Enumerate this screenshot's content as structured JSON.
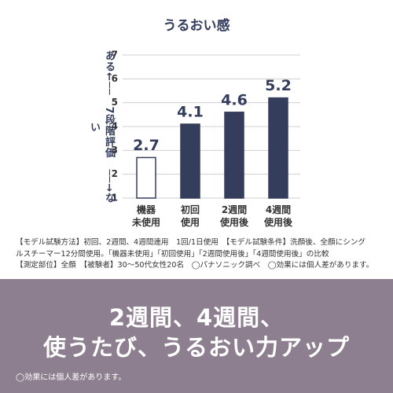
{
  "chart_data": {
    "type": "bar",
    "title": "うるおい感",
    "ylabel": "ある←──　7段階評価　──→ない",
    "categories": [
      "機器\n未使用",
      "初回\n使用",
      "2週間\n使用後",
      "4週間\n使用後"
    ],
    "values": [
      2.7,
      4.1,
      4.6,
      5.2
    ],
    "colors": [
      "#ffffff",
      "#343d5c",
      "#343d5c",
      "#343d5c"
    ],
    "edgecolor": "#343d5c",
    "ylim": [
      1,
      7
    ],
    "yticks": [
      1,
      2,
      3,
      4,
      5,
      6,
      7
    ],
    "grid": true
  },
  "notes": [
    "【モデル試験方法】初回、2週間、4週間連用　1回/1日使用　【モデル試験条件】洗顔後、全顔にシング",
    "ルスチーマー12分間使用。「機器未使用」「初回使用」「2週間使用後」「4週間使用後」の比較",
    "【測定部位】全顔　【被験者】30～50代女性20名　◯パナソニック調べ　◯効果には個人差があります。"
  ],
  "banner": {
    "lines": [
      "2週間、4週間、",
      "使うたび、うるおい力アップ"
    ],
    "footnote": "◯効果には個人差があります。"
  }
}
